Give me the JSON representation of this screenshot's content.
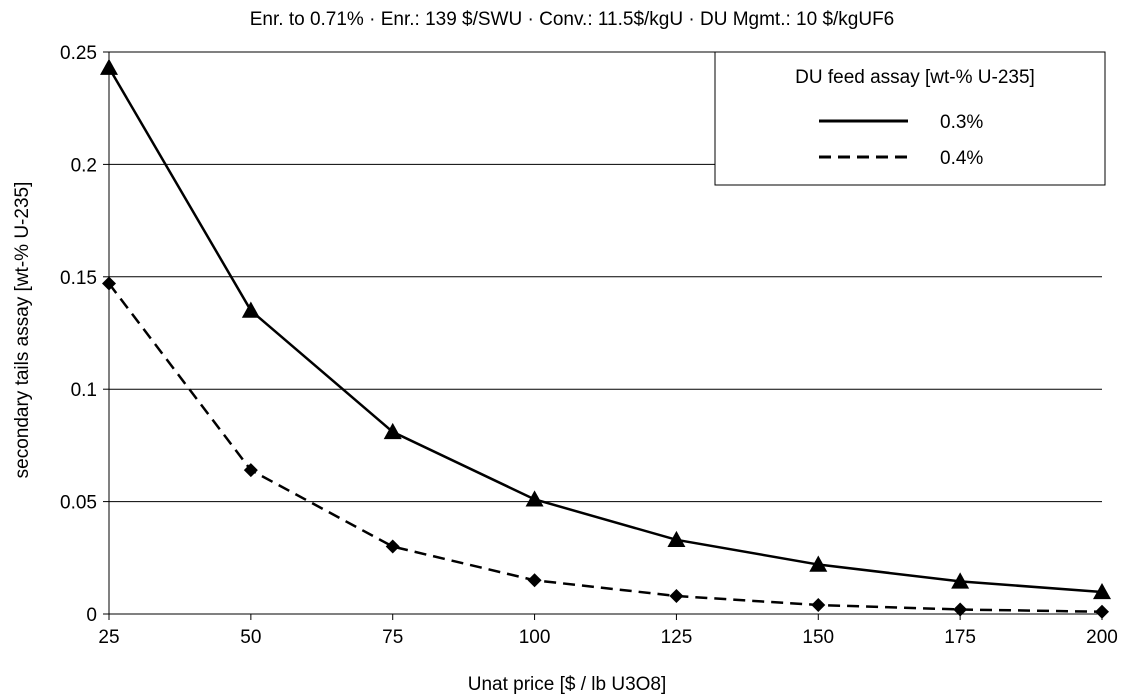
{
  "chart_data": {
    "type": "line",
    "title": "Enr. to 0.71%  · Enr.: 139 $/SWU  · Conv.: 11.5$/kgU  · DU Mgmt.: 10 $/kgUF6",
    "xlabel": "Unat price [$ / lb U3O8]",
    "ylabel": "secondary tails assay [wt-% U-235]",
    "xlim": [
      25,
      200
    ],
    "ylim": [
      0,
      0.25
    ],
    "x_ticks": [
      "25",
      "50",
      "75",
      "100",
      "125",
      "150",
      "175",
      "200"
    ],
    "y_ticks": [
      "0",
      "0.05",
      "0.1",
      "0.15",
      "0.2",
      "0.25"
    ],
    "x_tick_values": [
      25,
      50,
      75,
      100,
      125,
      150,
      175,
      200
    ],
    "y_tick_values": [
      0,
      0.05,
      0.1,
      0.15,
      0.2,
      0.25
    ],
    "grid": "horizontal",
    "legend": {
      "title": "DU feed assay [wt-% U-235]",
      "placement": "top-right"
    },
    "x": [
      25,
      50,
      75,
      100,
      125,
      150,
      175,
      200
    ],
    "series": [
      {
        "name": "0.3%",
        "values": [
          0.243,
          0.135,
          0.081,
          0.051,
          0.033,
          0.022,
          0.0145,
          0.0098
        ],
        "line_style": "solid",
        "marker": "triangle",
        "color": "#000000"
      },
      {
        "name": "0.4%",
        "values": [
          0.147,
          0.064,
          0.03,
          0.015,
          0.008,
          0.004,
          0.002,
          0.001
        ],
        "line_style": "dashed",
        "marker": "diamond",
        "color": "#000000"
      }
    ]
  }
}
